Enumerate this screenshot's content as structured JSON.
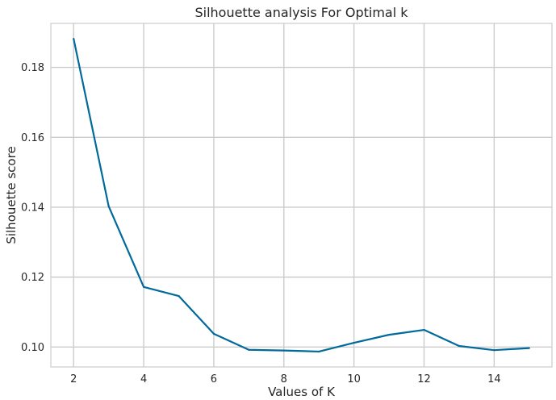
{
  "chart_data": {
    "type": "line",
    "title": "Silhouette analysis For Optimal k",
    "xlabel": "Values of K",
    "ylabel": "Silhouette score",
    "x": [
      2,
      3,
      4,
      5,
      6,
      7,
      8,
      9,
      10,
      11,
      12,
      13,
      14,
      15
    ],
    "y": [
      0.1882,
      0.1403,
      0.1172,
      0.1146,
      0.1038,
      0.0992,
      0.099,
      0.0987,
      0.1012,
      0.1035,
      0.1049,
      0.1003,
      0.0991,
      0.0997
    ],
    "xticks": [
      "2",
      "4",
      "6",
      "8",
      "10",
      12,
      14
    ],
    "xtick_values": [
      2,
      4,
      6,
      8,
      10,
      12,
      14
    ],
    "xtick_labels": [
      "2",
      "4",
      "6",
      "8",
      "10",
      "12",
      "14"
    ],
    "yticks": [
      0.1,
      0.12,
      0.14,
      0.16,
      0.18
    ],
    "ytick_labels": [
      "0.10",
      "0.12",
      "0.14",
      "0.16",
      "0.18"
    ],
    "xlim": [
      1.35,
      15.65
    ],
    "ylim": [
      0.0943,
      0.1926
    ],
    "grid": true,
    "line_color": "#006a9a",
    "grid_color": "#cccccc",
    "axis_color": "#cccccc"
  }
}
